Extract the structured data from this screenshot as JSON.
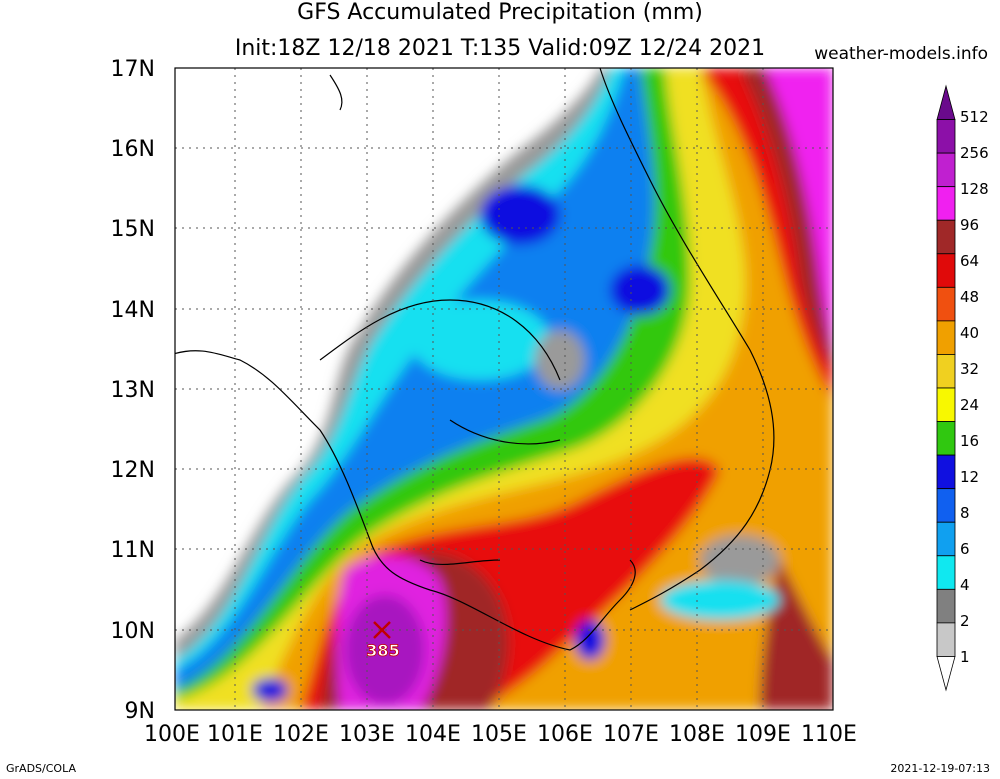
{
  "header": {
    "title": "GFS Accumulated Precipitation (mm)",
    "subtitle": "Init:18Z 12/18 2021 T:135 Valid:09Z 12/24 2021",
    "site": "weather-models.info"
  },
  "map": {
    "lat_labels": [
      "17N",
      "16N",
      "15N",
      "14N",
      "13N",
      "12N",
      "11N",
      "10N",
      "9N"
    ],
    "lon_labels": [
      "100E",
      "101E",
      "102E",
      "103E",
      "104E",
      "105E",
      "106E",
      "107E",
      "108E",
      "109E",
      "110E"
    ],
    "lat_range": [
      9,
      17
    ],
    "lon_range": [
      100,
      110
    ],
    "max_marker": {
      "value": "385",
      "lon": 103.2,
      "lat": 9.9
    }
  },
  "colorbar": {
    "levels": [
      "512",
      "256",
      "128",
      "96",
      "64",
      "48",
      "40",
      "32",
      "24",
      "16",
      "12",
      "8",
      "6",
      "4",
      "2",
      "1"
    ],
    "colors": [
      "#6a0a8c",
      "#8c10a8",
      "#c020d0",
      "#f020f0",
      "#a02828",
      "#e00a0a",
      "#f05010",
      "#f0a000",
      "#f0d020",
      "#f8f800",
      "#30c810",
      "#1010e0",
      "#1060f0",
      "#10a0f0",
      "#10e8f0",
      "#808080",
      "#c8c8c8",
      "#ffffff"
    ]
  },
  "footer": {
    "left": "GrADS/COLA",
    "right": "2021-12-19-07:13"
  }
}
